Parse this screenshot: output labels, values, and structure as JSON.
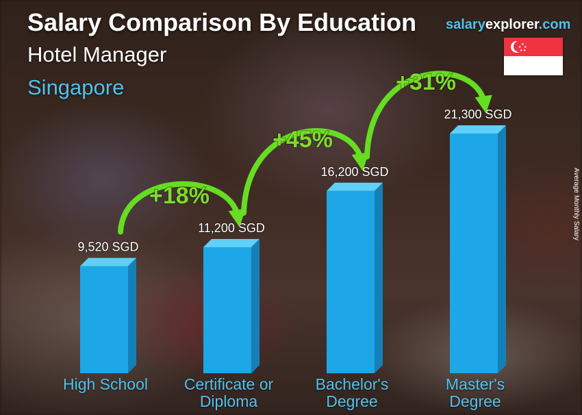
{
  "title": "Salary Comparison By Education",
  "subtitle": "Hotel Manager",
  "location": "Singapore",
  "brand": {
    "part1": "salary",
    "part2": "explorer",
    "part3": ".com",
    "color1": "#4fc3ee",
    "color2": "#ffffff"
  },
  "flag": {
    "country": "Singapore",
    "red": "#ef3340",
    "white": "#ffffff"
  },
  "axis_label": "Average Monthly Salary",
  "colors": {
    "bar_front": "#1ea7e6",
    "bar_side": "#1580b8",
    "bar_top": "#5fd0f7",
    "arrow": "#66dd22",
    "pct_text": "#7ddc2a",
    "category_text": "#4fc3ee"
  },
  "chart_data": {
    "type": "bar",
    "categories": [
      "High School",
      "Certificate or Diploma",
      "Bachelor's Degree",
      "Master's Degree"
    ],
    "category_lines": [
      [
        "High School"
      ],
      [
        "Certificate or",
        "Diploma"
      ],
      [
        "Bachelor's",
        "Degree"
      ],
      [
        "Master's",
        "Degree"
      ]
    ],
    "values": [
      9520,
      11200,
      16200,
      21300
    ],
    "value_labels": [
      "9,520 SGD",
      "11,200 SGD",
      "16,200 SGD",
      "21,300 SGD"
    ],
    "unit": "SGD",
    "increments": [
      "+18%",
      "+45%",
      "+31%"
    ],
    "ylabel": "Average Monthly Salary",
    "ylim": [
      0,
      21300
    ]
  }
}
